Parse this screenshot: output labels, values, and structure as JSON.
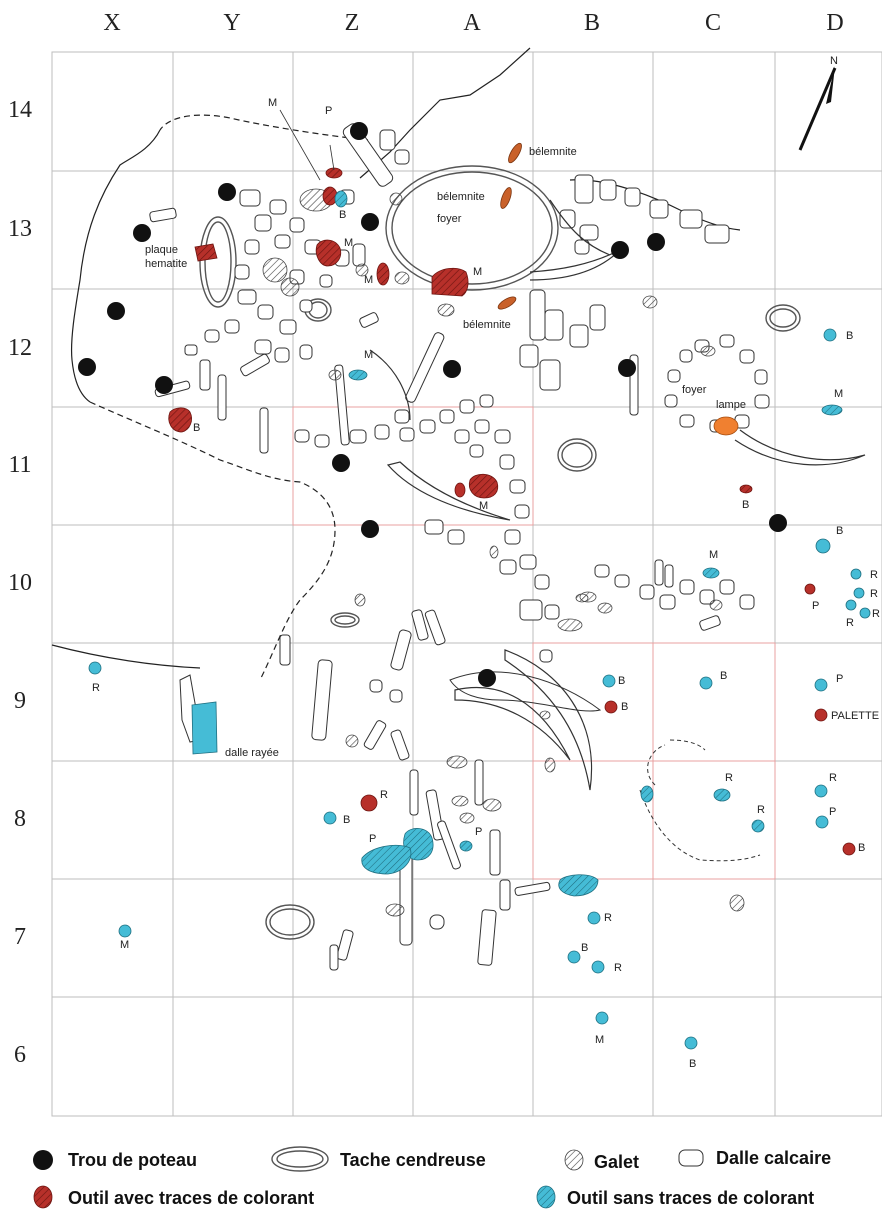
{
  "columns": [
    "X",
    "Y",
    "Z",
    "A",
    "B",
    "C",
    "D"
  ],
  "rows": [
    "14",
    "13",
    "12",
    "11",
    "10",
    "9",
    "8",
    "7",
    "6"
  ],
  "north": "N",
  "colors": {
    "posthole": "#111111",
    "tool_with_colorant": "#b7302a",
    "tool_without_colorant": "#45bcd6",
    "belemnite": "#c9612a",
    "lamp": "#f08030",
    "grid": "#bdbdbd"
  },
  "labels": {
    "belemnite_1": "bélemnite",
    "belemnite_2": "bélemnite",
    "belemnite_3": "bélemnite",
    "foyer": "foyer",
    "foyer_lampe_1": "foyer",
    "foyer_lampe_2": "lampe",
    "plaque_1": "plaque",
    "plaque_2": "hematite",
    "dalle_rayee": "dalle rayée",
    "palette": "PALETTE"
  },
  "tools": [
    {
      "code": "M"
    },
    {
      "code": "P"
    },
    {
      "code": "B"
    },
    {
      "code": "M"
    },
    {
      "code": "M"
    },
    {
      "code": "M"
    },
    {
      "code": "M"
    },
    {
      "code": "B"
    },
    {
      "code": "B"
    },
    {
      "code": "M"
    },
    {
      "code": "B"
    },
    {
      "code": "M"
    },
    {
      "code": "M"
    },
    {
      "code": "B"
    },
    {
      "code": "R"
    },
    {
      "code": "R"
    },
    {
      "code": "R"
    },
    {
      "code": "R"
    },
    {
      "code": "P"
    },
    {
      "code": "B"
    },
    {
      "code": "B"
    },
    {
      "code": "B"
    },
    {
      "code": "P"
    },
    {
      "code": "R"
    },
    {
      "code": "R"
    },
    {
      "code": "R"
    },
    {
      "code": "B"
    },
    {
      "code": "R"
    },
    {
      "code": "P"
    },
    {
      "code": "B"
    },
    {
      "code": "P"
    },
    {
      "code": "P"
    },
    {
      "code": "R"
    },
    {
      "code": "M"
    },
    {
      "code": "R"
    },
    {
      "code": "B"
    },
    {
      "code": "R"
    },
    {
      "code": "M"
    },
    {
      "code": "B"
    }
  ],
  "legend": {
    "posthole": "Trou de poteau",
    "ash": "Tache cendreuse",
    "pebble": "Galet",
    "slab": "Dalle calcaire",
    "with_colorant": "Outil avec traces de colorant",
    "without_colorant": "Outil sans traces de colorant"
  }
}
